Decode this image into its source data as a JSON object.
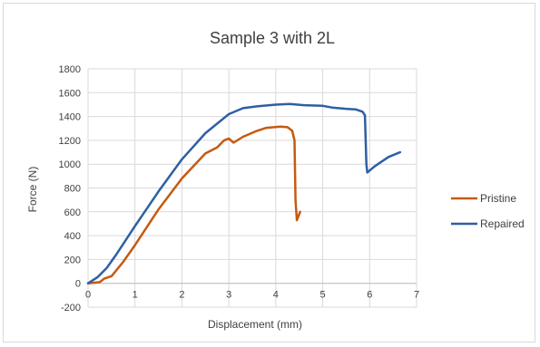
{
  "chart_data": {
    "type": "line",
    "title": "Sample 3 with 2L",
    "xlabel": "Displacement (mm)",
    "ylabel": "Force (N)",
    "xlim": [
      0,
      7
    ],
    "ylim": [
      -200,
      1800
    ],
    "x_ticks": [
      0,
      1,
      2,
      3,
      4,
      5,
      6,
      7
    ],
    "y_ticks": [
      -200,
      0,
      200,
      400,
      600,
      800,
      1000,
      1200,
      1400,
      1600,
      1800
    ],
    "grid": true,
    "legend_position": "right",
    "series": [
      {
        "name": "Pristine",
        "color": "#c55a11",
        "points": [
          [
            0,
            0
          ],
          [
            0.25,
            10
          ],
          [
            0.35,
            40
          ],
          [
            0.5,
            60
          ],
          [
            0.75,
            180
          ],
          [
            1.0,
            320
          ],
          [
            1.5,
            620
          ],
          [
            2.0,
            880
          ],
          [
            2.5,
            1090
          ],
          [
            2.75,
            1140
          ],
          [
            2.9,
            1200
          ],
          [
            3.0,
            1215
          ],
          [
            3.1,
            1180
          ],
          [
            3.3,
            1230
          ],
          [
            3.6,
            1280
          ],
          [
            3.8,
            1305
          ],
          [
            4.1,
            1315
          ],
          [
            4.25,
            1310
          ],
          [
            4.35,
            1280
          ],
          [
            4.4,
            1200
          ],
          [
            4.42,
            700
          ],
          [
            4.45,
            530
          ],
          [
            4.52,
            600
          ]
        ]
      },
      {
        "name": "Repaired",
        "color": "#2e5fa3",
        "points": [
          [
            0,
            0
          ],
          [
            0.2,
            50
          ],
          [
            0.4,
            130
          ],
          [
            0.6,
            240
          ],
          [
            1.0,
            480
          ],
          [
            1.5,
            770
          ],
          [
            2.0,
            1040
          ],
          [
            2.5,
            1260
          ],
          [
            3.0,
            1420
          ],
          [
            3.3,
            1470
          ],
          [
            3.6,
            1485
          ],
          [
            4.0,
            1500
          ],
          [
            4.3,
            1505
          ],
          [
            4.6,
            1495
          ],
          [
            5.0,
            1490
          ],
          [
            5.2,
            1475
          ],
          [
            5.5,
            1465
          ],
          [
            5.7,
            1460
          ],
          [
            5.85,
            1440
          ],
          [
            5.9,
            1410
          ],
          [
            5.93,
            1000
          ],
          [
            5.95,
            930
          ],
          [
            6.1,
            980
          ],
          [
            6.4,
            1060
          ],
          [
            6.65,
            1100
          ]
        ]
      }
    ]
  }
}
